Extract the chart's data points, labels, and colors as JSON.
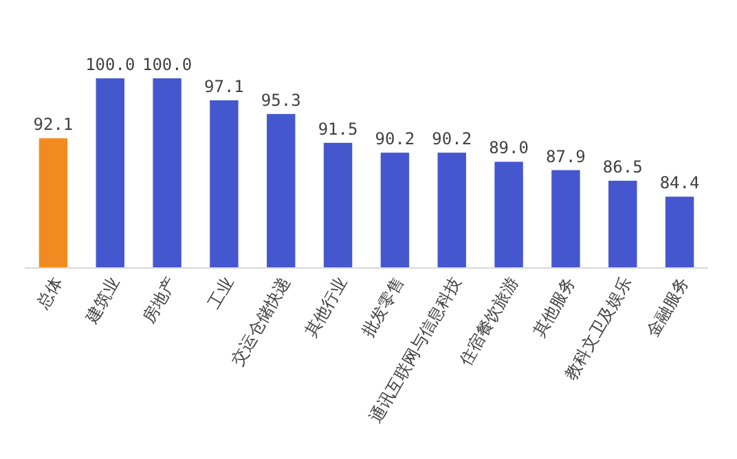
{
  "chart_data": {
    "type": "bar",
    "categories": [
      "总体",
      "建筑业",
      "房地产",
      "工业",
      "交运仓储快递",
      "其他行业",
      "批发零售",
      "通讯互联网与信息科技",
      "住宿餐饮旅游",
      "其他服务",
      "教科文卫及娱乐",
      "金融服务"
    ],
    "values": [
      92.1,
      100.0,
      100.0,
      97.1,
      95.3,
      91.5,
      90.2,
      90.2,
      89.0,
      87.9,
      86.5,
      84.4
    ],
    "colors": [
      "#f28b1f",
      "#4557cf",
      "#4557cf",
      "#4557cf",
      "#4557cf",
      "#4557cf",
      "#4557cf",
      "#4557cf",
      "#4557cf",
      "#4557cf",
      "#4557cf",
      "#4557cf"
    ],
    "value_labels": [
      "92.1",
      "100.0",
      "100.0",
      "97.1",
      "95.3",
      "91.5",
      "90.2",
      "90.2",
      "89.0",
      "87.9",
      "86.5",
      "84.4"
    ],
    "ylim": [
      75,
      100
    ]
  }
}
